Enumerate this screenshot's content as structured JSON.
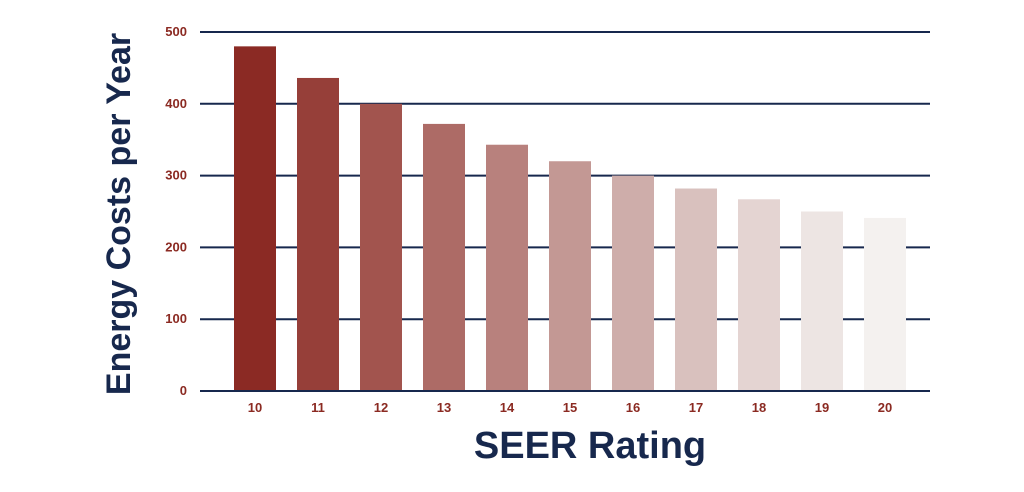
{
  "chart_data": {
    "type": "bar",
    "title": "",
    "xlabel": "SEER Rating",
    "ylabel": "Energy Costs per Year",
    "categories": [
      "10",
      "11",
      "12",
      "13",
      "14",
      "15",
      "16",
      "17",
      "18",
      "19",
      "20"
    ],
    "values": [
      480,
      436,
      400,
      372,
      343,
      320,
      300,
      282,
      267,
      250,
      241
    ],
    "ylim": [
      0,
      500
    ],
    "yticks": [
      "0",
      "100",
      "200",
      "300",
      "400",
      "500"
    ],
    "grid": "horizontal",
    "legend": "none",
    "bar_colors": [
      "#8b2a24",
      "#963f39",
      "#a2544e",
      "#ad6b66",
      "#b8817d",
      "#c39894",
      "#ceadaa",
      "#d9c1be",
      "#e4d4d2",
      "#ede5e3",
      "#f4f1ef"
    ],
    "tick_color": "#8b2a22",
    "grid_color": "#17284d",
    "axis_title_color": "#17284d"
  }
}
